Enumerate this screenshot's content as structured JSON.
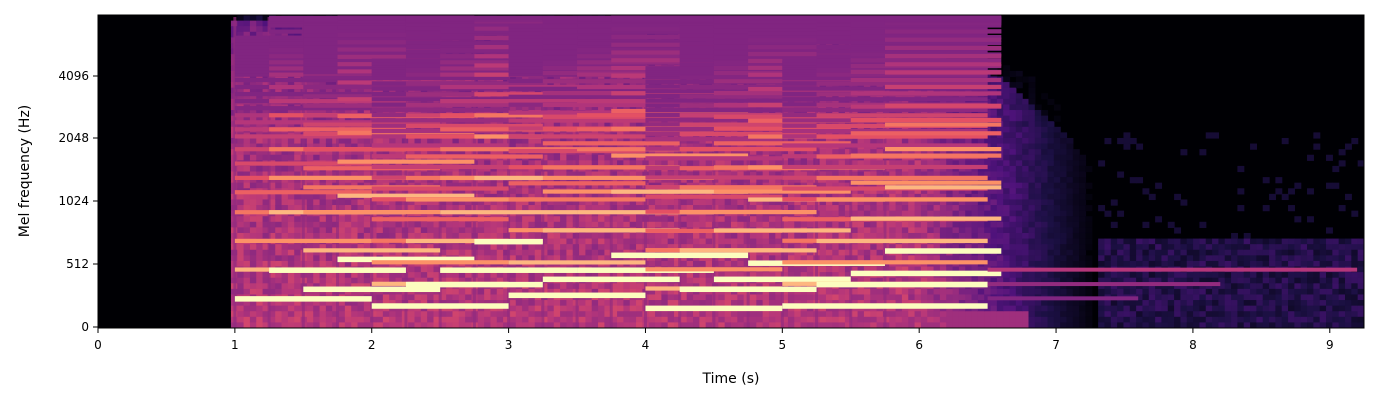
{
  "chart_data": {
    "type": "heatmap",
    "title": "",
    "xlabel": "Time (s)",
    "ylabel": "Mel frequency (Hz)",
    "x_axis": {
      "min": 0,
      "max": 9.25,
      "ticks": [
        0,
        1,
        2,
        3,
        4,
        5,
        6,
        7,
        8,
        9
      ]
    },
    "y_axis": {
      "scale": "mel",
      "ticks": [
        0,
        512,
        1024,
        2048,
        4096
      ]
    },
    "colormap": "magma",
    "colors": {
      "low": "#000004",
      "mid": "#b73779",
      "high": "#fcfdbf"
    },
    "notes": [
      {
        "start": 1.0,
        "end": 2.0,
        "f0": 233
      },
      {
        "start": 1.25,
        "end": 2.25,
        "f0": 466
      },
      {
        "start": 1.5,
        "end": 2.5,
        "f0": 311
      },
      {
        "start": 1.75,
        "end": 2.75,
        "f0": 554
      },
      {
        "start": 2.0,
        "end": 3.0,
        "f0": 175
      },
      {
        "start": 2.25,
        "end": 3.25,
        "f0": 349
      },
      {
        "start": 2.5,
        "end": 3.5,
        "f0": 466
      },
      {
        "start": 2.75,
        "end": 3.25,
        "f0": 698
      },
      {
        "start": 3.0,
        "end": 4.0,
        "f0": 262
      },
      {
        "start": 3.25,
        "end": 4.25,
        "f0": 392
      },
      {
        "start": 3.5,
        "end": 4.5,
        "f0": 466
      },
      {
        "start": 3.75,
        "end": 4.75,
        "f0": 587
      },
      {
        "start": 4.0,
        "end": 5.0,
        "f0": 156
      },
      {
        "start": 4.25,
        "end": 5.25,
        "f0": 311
      },
      {
        "start": 4.5,
        "end": 5.5,
        "f0": 392
      },
      {
        "start": 4.75,
        "end": 5.75,
        "f0": 523
      },
      {
        "start": 5.0,
        "end": 6.5,
        "f0": 175
      },
      {
        "start": 5.25,
        "end": 6.5,
        "f0": 349
      },
      {
        "start": 5.5,
        "end": 6.6,
        "f0": 440
      },
      {
        "start": 5.75,
        "end": 6.6,
        "f0": 622
      }
    ]
  }
}
